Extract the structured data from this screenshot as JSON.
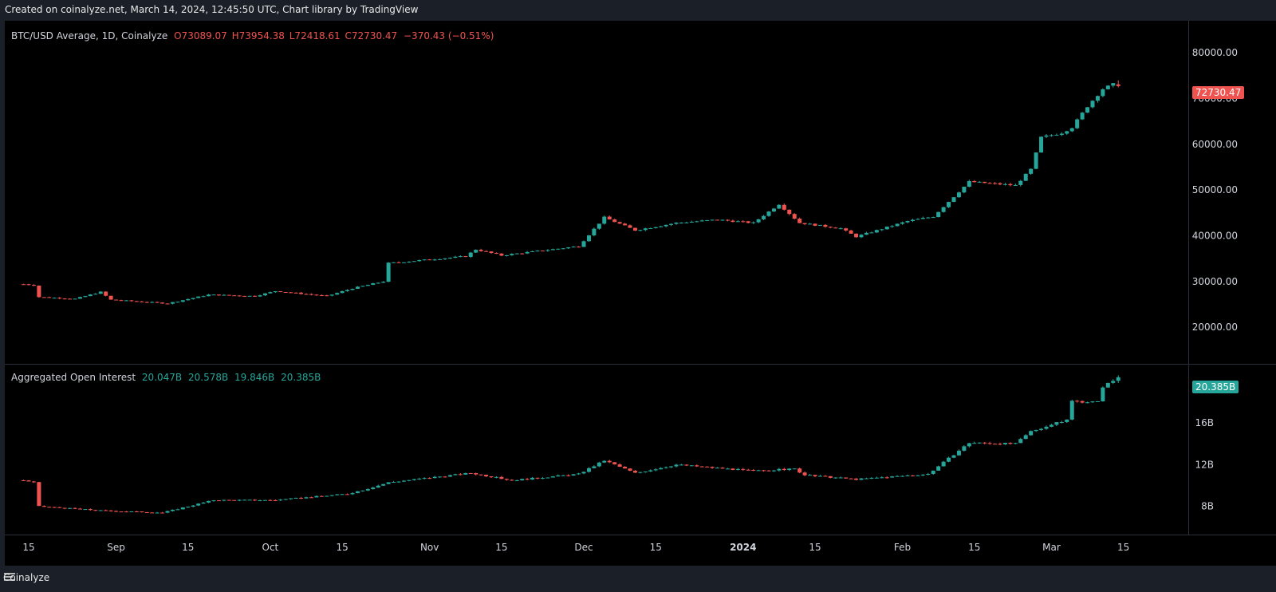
{
  "header": {
    "created_text": "Created on coinalyze.net, March 14, 2024, 12:45:50 UTC, Chart library by TradingView"
  },
  "footer": {
    "brand": "Coinalyze"
  },
  "colors": {
    "up": "#26a69a",
    "down": "#ef5350",
    "background": "#000000",
    "grid": "#1e222d",
    "axis_border": "#2a2e39"
  },
  "price_pane": {
    "symbol": "BTC/USD Average, 1D, Coinalyze",
    "open": "O73089.07",
    "high": "H73954.38",
    "low": "L72418.61",
    "close": "C72730.47",
    "change": "−370.43 (−0.51%)",
    "last_value_tag": "72730.47"
  },
  "oi_pane": {
    "title": "Aggregated Open Interest",
    "open": "20.047B",
    "high": "20.578B",
    "low": "19.846B",
    "close": "20.385B",
    "last_value_tag": "20.385B"
  },
  "chart_data": [
    {
      "type": "candlestick",
      "title": "BTC/USD Average, 1D, Coinalyze",
      "y_ticks": [
        "80000.00",
        "70000.00",
        "60000.00",
        "50000.00",
        "40000.00",
        "30000.00",
        "20000.00"
      ],
      "ylim": [
        12000,
        87000
      ],
      "x_range": [
        "2023-08-15",
        "2024-03-18"
      ],
      "x_ticks": [
        "15",
        "Sep",
        "15",
        "Oct",
        "15",
        "Nov",
        "15",
        "Dec",
        "15",
        "2024",
        "15",
        "Feb",
        "15",
        "Mar",
        "15"
      ],
      "anchors": [
        [
          "2023-08-14",
          29400
        ],
        [
          "2023-08-16",
          29200
        ],
        [
          "2023-08-17",
          26600
        ],
        [
          "2023-08-24",
          26200
        ],
        [
          "2023-08-29",
          27700
        ],
        [
          "2023-08-31",
          26000
        ],
        [
          "2023-09-11",
          25200
        ],
        [
          "2023-09-19",
          27100
        ],
        [
          "2023-09-28",
          26800
        ],
        [
          "2023-10-02",
          27900
        ],
        [
          "2023-10-12",
          26800
        ],
        [
          "2023-10-17",
          28500
        ],
        [
          "2023-10-23",
          30000
        ],
        [
          "2023-10-24",
          34000
        ],
        [
          "2023-11-08",
          35500
        ],
        [
          "2023-11-10",
          37000
        ],
        [
          "2023-11-15",
          35700
        ],
        [
          "2023-11-30",
          37700
        ],
        [
          "2023-12-05",
          44000
        ],
        [
          "2023-12-11",
          41200
        ],
        [
          "2023-12-19",
          42800
        ],
        [
          "2023-12-27",
          43500
        ],
        [
          "2024-01-03",
          42800
        ],
        [
          "2024-01-08",
          46900
        ],
        [
          "2024-01-12",
          42800
        ],
        [
          "2024-01-20",
          41600
        ],
        [
          "2024-01-23",
          39800
        ],
        [
          "2024-02-02",
          43200
        ],
        [
          "2024-02-07",
          44200
        ],
        [
          "2024-02-14",
          51800
        ],
        [
          "2024-02-23",
          51000
        ],
        [
          "2024-02-26",
          54500
        ],
        [
          "2024-02-28",
          61500
        ],
        [
          "2024-03-03",
          62500
        ],
        [
          "2024-03-05",
          63700
        ],
        [
          "2024-03-08",
          68300
        ],
        [
          "2024-03-11",
          72100
        ],
        [
          "2024-03-13",
          73089
        ],
        [
          "2024-03-14",
          72730
        ]
      ],
      "ohlc_last": {
        "open": 73089.07,
        "high": 73954.38,
        "low": 72418.61,
        "close": 72730.47
      }
    },
    {
      "type": "candlestick",
      "title": "Aggregated Open Interest",
      "unit": "B",
      "y_ticks": [
        "16B",
        "12B",
        "8B"
      ],
      "ylim": [
        5.3,
        21.6
      ],
      "anchors": [
        [
          "2023-08-14",
          10.5
        ],
        [
          "2023-08-16",
          10.3
        ],
        [
          "2023-08-17",
          8.0
        ],
        [
          "2023-08-29",
          7.6
        ],
        [
          "2023-09-10",
          7.4
        ],
        [
          "2023-09-20",
          8.6
        ],
        [
          "2023-10-02",
          8.6
        ],
        [
          "2023-10-16",
          9.2
        ],
        [
          "2023-10-20",
          9.7
        ],
        [
          "2023-10-24",
          10.3
        ],
        [
          "2023-11-09",
          11.2
        ],
        [
          "2023-11-17",
          10.5
        ],
        [
          "2023-11-30",
          11.1
        ],
        [
          "2023-12-05",
          12.4
        ],
        [
          "2023-12-11",
          11.2
        ],
        [
          "2023-12-19",
          12.0
        ],
        [
          "2024-01-03",
          11.4
        ],
        [
          "2024-01-11",
          11.6
        ],
        [
          "2024-01-13",
          11.0
        ],
        [
          "2024-01-23",
          10.6
        ],
        [
          "2024-02-06",
          11.1
        ],
        [
          "2024-02-14",
          14.1
        ],
        [
          "2024-02-23",
          14.0
        ],
        [
          "2024-02-26",
          15.2
        ],
        [
          "2024-03-04",
          16.3
        ],
        [
          "2024-03-05",
          18.1
        ],
        [
          "2024-03-10",
          18.0
        ],
        [
          "2024-03-11",
          19.5
        ],
        [
          "2024-03-13",
          20.05
        ],
        [
          "2024-03-14",
          20.385
        ]
      ],
      "ohlc_last": {
        "open": 20.047,
        "high": 20.578,
        "low": 19.846,
        "close": 20.385
      }
    }
  ]
}
